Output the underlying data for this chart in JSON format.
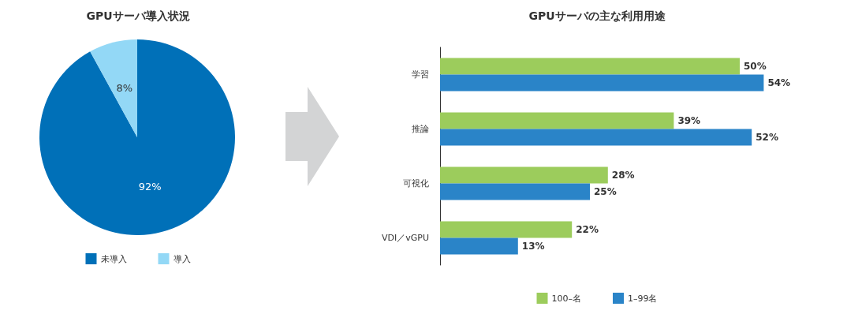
{
  "chart_data": [
    {
      "type": "pie",
      "title": "GPUサーバ導入状況",
      "categories": [
        "未導入",
        "導入"
      ],
      "values": [
        92,
        8
      ],
      "colors": [
        "#0070b8",
        "#93d8f6"
      ],
      "value_labels": [
        "92%",
        "8%"
      ],
      "legend": "bottom"
    },
    {
      "type": "bar",
      "title": "GPUサーバの主な利用用途",
      "orientation": "horizontal",
      "categories": [
        "学習",
        "推論",
        "可視化",
        "VDI／vGPU"
      ],
      "series": [
        {
          "name": "100–名",
          "color": "#9ccc5c",
          "values": [
            50,
            39,
            28,
            22
          ],
          "value_labels": [
            "50%",
            "39%",
            "28%",
            "22%"
          ]
        },
        {
          "name": "1–99名",
          "color": "#2a84c8",
          "values": [
            54,
            52,
            25,
            13
          ],
          "value_labels": [
            "54%",
            "52%",
            "25%",
            "13%"
          ]
        }
      ],
      "legend": "bottom"
    }
  ]
}
